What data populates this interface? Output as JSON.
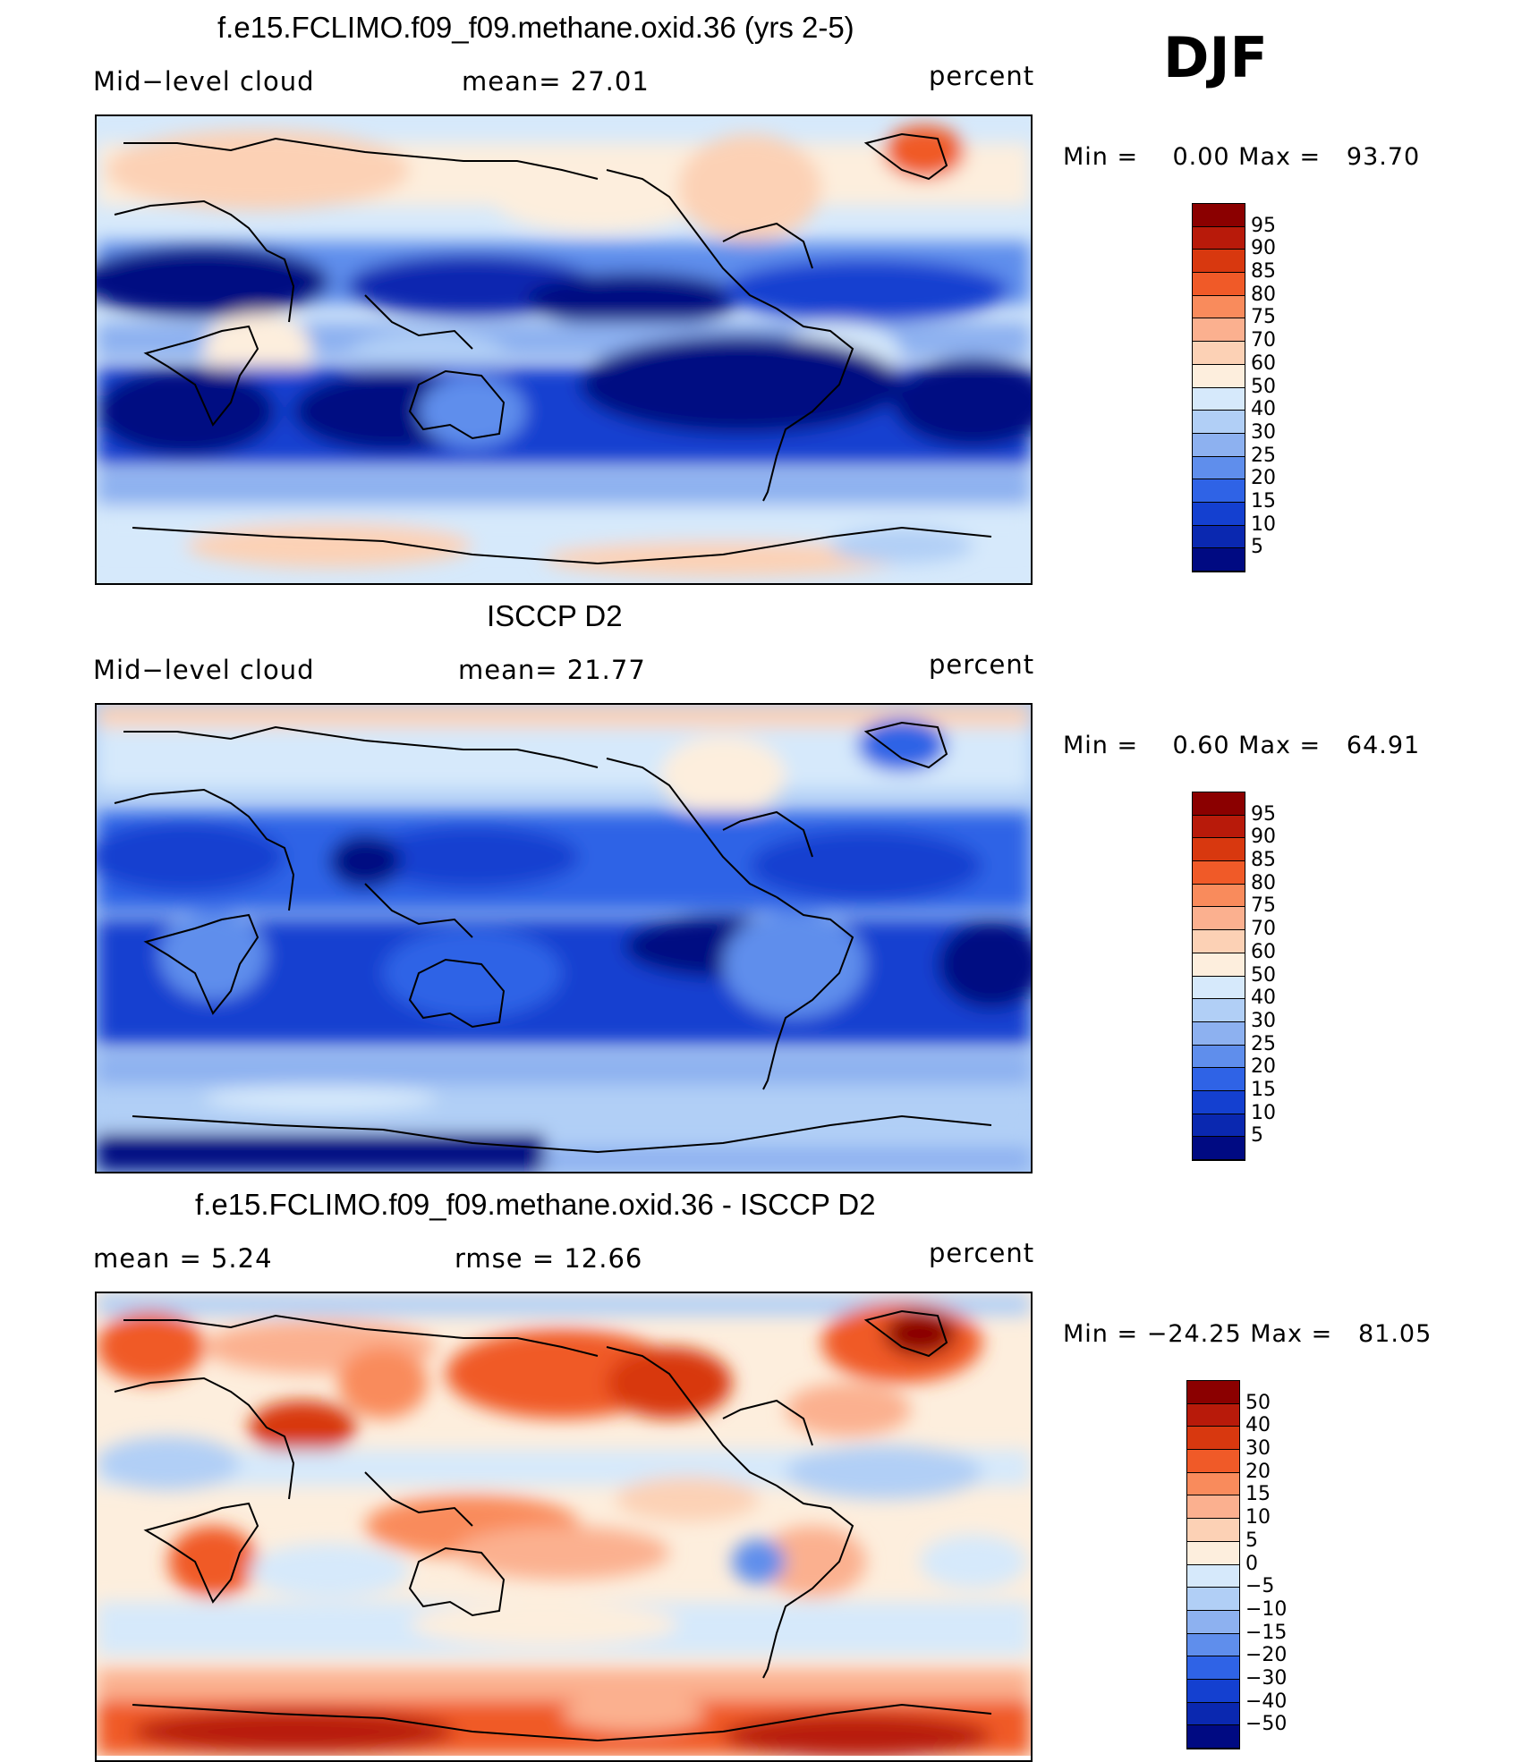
{
  "season": "DJF",
  "panels": [
    {
      "id": "model",
      "title": "f.e15.FCLIMO.f09_f09.methane.oxid.36 (yrs 2-5)",
      "left_label": "Mid−level cloud",
      "center_label": "mean=   27.01",
      "right_label": "percent",
      "minmax": "Min =    0.00 Max =   93.70",
      "palette": "abs"
    },
    {
      "id": "obs",
      "title": "ISCCP D2",
      "left_label": "Mid−level cloud",
      "center_label": "mean=   21.77",
      "right_label": "percent",
      "minmax": "Min =    0.60 Max =   64.91",
      "palette": "abs"
    },
    {
      "id": "diff",
      "title": "f.e15.FCLIMO.f09_f09.methane.oxid.36 - ISCCP D2",
      "left_label": "mean =    5.24",
      "center_label": "rmse =   12.66",
      "right_label": "percent",
      "minmax": "Min = −24.25 Max =   81.05",
      "palette": "diff"
    }
  ],
  "colorbars": {
    "abs": {
      "levels": [
        "95",
        "90",
        "85",
        "80",
        "75",
        "70",
        "60",
        "50",
        "40",
        "30",
        "25",
        "20",
        "15",
        "10",
        "5"
      ],
      "colors": [
        "#8b0000",
        "#b81a0a",
        "#d8380f",
        "#f05a28",
        "#f98b5c",
        "#fbb08f",
        "#fcd1b5",
        "#fdeedd",
        "#d6e9fb",
        "#b1cff6",
        "#8db1f0",
        "#5f8eec",
        "#2f63e6",
        "#1440d0",
        "#0a28b0",
        "#000a82"
      ]
    },
    "diff": {
      "levels": [
        "50",
        "40",
        "30",
        "20",
        "15",
        "10",
        "5",
        "0",
        "−5",
        "−10",
        "−15",
        "−20",
        "−30",
        "−40",
        "−50"
      ],
      "colors": [
        "#8b0000",
        "#b81a0a",
        "#d8380f",
        "#f05a28",
        "#f98b5c",
        "#fbb08f",
        "#fcd1b5",
        "#fdeedd",
        "#d6e9fb",
        "#b1cff6",
        "#8db1f0",
        "#5f8eec",
        "#2f63e6",
        "#1440d0",
        "#0a28b0",
        "#000a82"
      ]
    }
  }
}
